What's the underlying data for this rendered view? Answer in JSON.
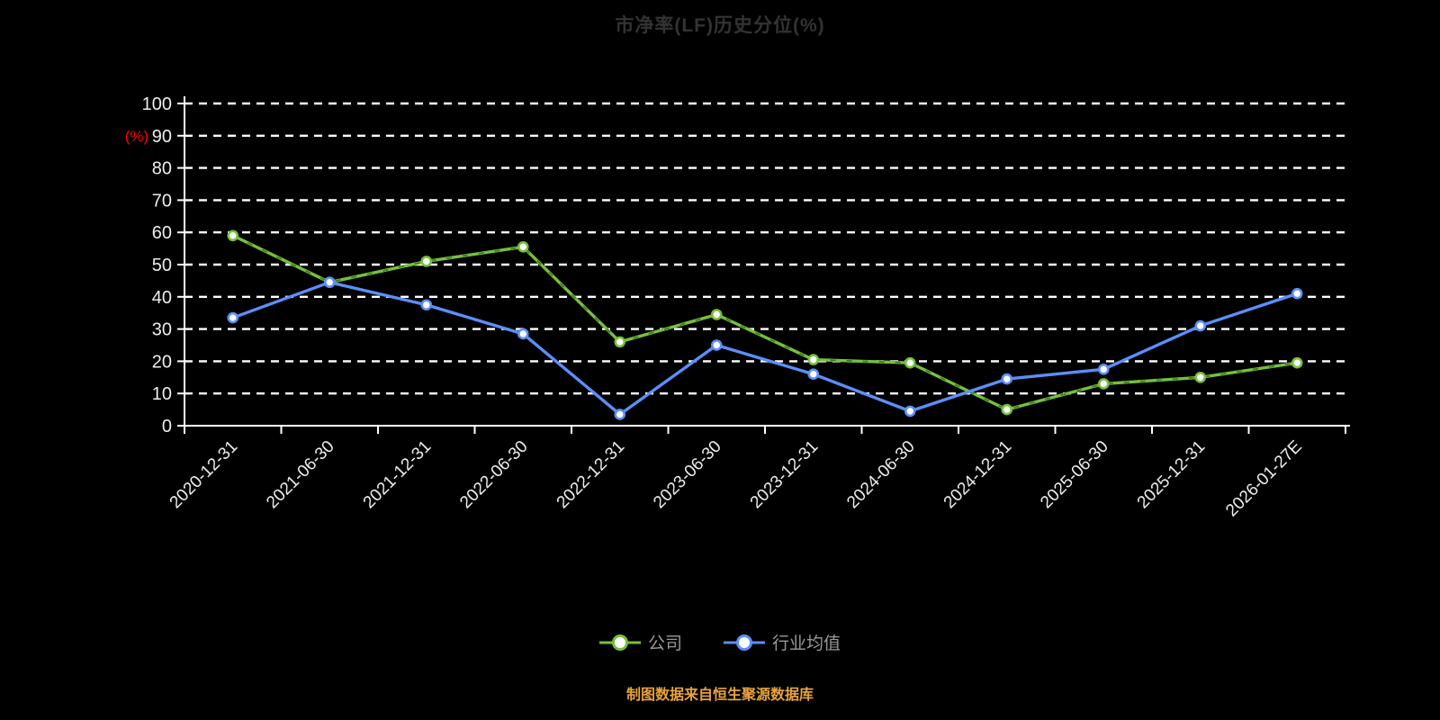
{
  "chart": {
    "title": "市净率(LF)历史分位(%)",
    "y_unit_label": "(%)",
    "footer": "制图数据来自恒生聚源数据库"
  },
  "chart_data": {
    "type": "line",
    "categories": [
      "2020-12-31",
      "2021-06-30",
      "2021-12-31",
      "2022-06-30",
      "2022-12-31",
      "2023-06-30",
      "2023-12-31",
      "2024-06-30",
      "2024-12-31",
      "2025-06-30",
      "2025-12-31",
      "2026-01-27E"
    ],
    "series": [
      {
        "name": "公司",
        "color": "#76c13c",
        "values": [
          59,
          44.5,
          51,
          55.5,
          26,
          34.5,
          20.5,
          19.5,
          5,
          13,
          15,
          19.5
        ]
      },
      {
        "name": "行业均值",
        "color": "#5b8ff9",
        "values": [
          33.5,
          44.5,
          37.5,
          28.5,
          3.5,
          25,
          16,
          4.5,
          14.5,
          17.5,
          31,
          41
        ]
      }
    ],
    "ylim": [
      0,
      100
    ],
    "y_ticks": [
      0,
      10,
      20,
      30,
      40,
      50,
      60,
      70,
      80,
      90,
      100
    ],
    "grid": "horizontal-dashed",
    "legend_position": "bottom"
  },
  "colors": {
    "background": "#000000",
    "axis": "#ffffff",
    "grid": "#ffffff",
    "tick_label": "#ededed",
    "title": "#333333",
    "unit_label": "#ff0000",
    "legend_text": "#999999",
    "footer": "#e8a33c",
    "marker_fill": "#ffffff"
  }
}
